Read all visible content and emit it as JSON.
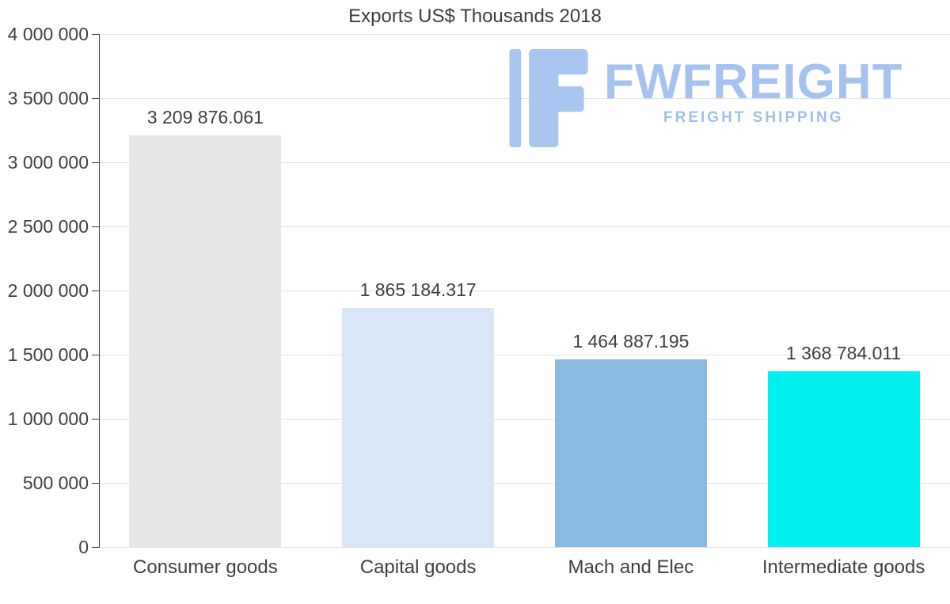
{
  "chart_data": {
    "type": "bar",
    "title": "Exports US$ Thousands 2018",
    "categories": [
      "Consumer goods",
      "Capital goods",
      "Mach and Elec",
      "Intermediate goods"
    ],
    "values": [
      3209876.061,
      1865184.317,
      1464887.195,
      1368784.011
    ],
    "value_labels": [
      "3 209 876.061",
      "1 865 184.317",
      "1 464 887.195",
      "1 368 784.011"
    ],
    "bar_colors": [
      "#e7e7e7",
      "#d9e7f8",
      "#8dbae1",
      "#00f0f0"
    ],
    "xlabel": "",
    "ylabel": "",
    "ylim": [
      0,
      4000000
    ],
    "ytick_interval": 500000,
    "ytick_labels": [
      "0",
      "500 000",
      "1 000 000",
      "1 500 000",
      "2 000 000",
      "2 500 000",
      "3 000 000",
      "3 500 000",
      "4 000 000"
    ],
    "grid": true,
    "legend": "none"
  },
  "watermark": {
    "brand": "FWFREIGHT",
    "tagline": "FREIGHT SHIPPING",
    "color": "#a6c3f0"
  }
}
